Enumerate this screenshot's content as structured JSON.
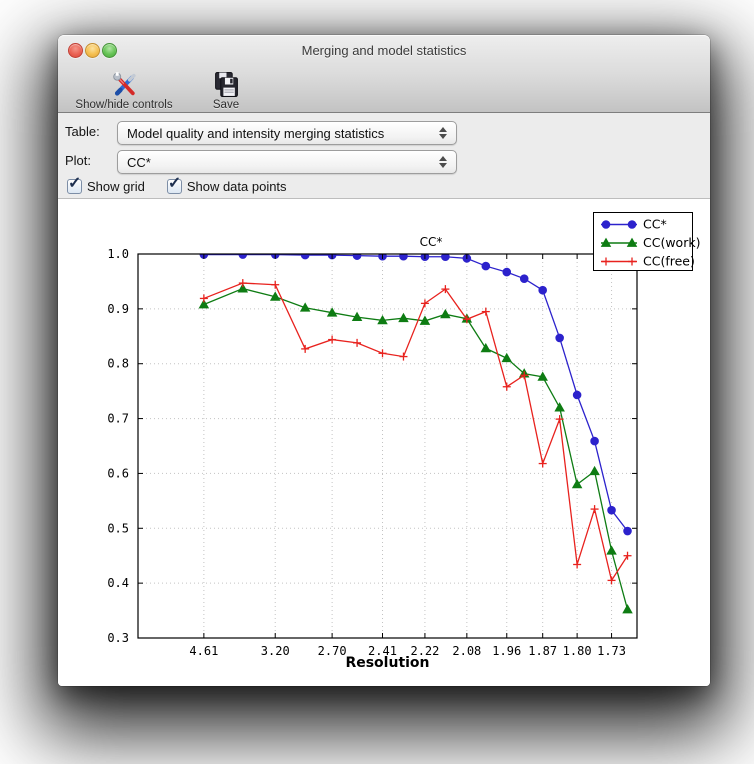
{
  "window": {
    "title": "Merging and model statistics"
  },
  "toolbar": {
    "buttons": [
      {
        "label": "Show/hide controls",
        "icon": "tools-icon"
      },
      {
        "label": "Save",
        "icon": "floppy-disk-icon"
      }
    ]
  },
  "controls": {
    "table_label": "Table:",
    "table_value": "Model quality and intensity merging statistics",
    "plot_label": "Plot:",
    "plot_value": "CC*",
    "checkboxes": [
      {
        "label": "Show grid",
        "checked": true
      },
      {
        "label": "Show data points",
        "checked": true
      }
    ]
  },
  "chart_data": {
    "type": "line",
    "title": "CC*",
    "xlabel": "Resolution",
    "ylabel": "",
    "ylim": [
      0.3,
      1.0
    ],
    "grid": true,
    "legend_position": "upper right",
    "yticks": [
      {
        "v": 1.0,
        "label": "1.0"
      },
      {
        "v": 0.9,
        "label": "0.9"
      },
      {
        "v": 0.8,
        "label": "0.8"
      },
      {
        "v": 0.7,
        "label": "0.7"
      },
      {
        "v": 0.6,
        "label": "0.6"
      },
      {
        "v": 0.5,
        "label": "0.5"
      },
      {
        "v": 0.4,
        "label": "0.4"
      },
      {
        "v": 0.3,
        "label": "0.3"
      }
    ],
    "xtick_labels": [
      "4.61",
      "3.20",
      "2.70",
      "2.41",
      "2.22",
      "2.08",
      "1.96",
      "1.87",
      "1.80",
      "1.73"
    ],
    "xtick_bins": [
      0,
      2,
      4,
      6,
      8,
      10,
      12,
      14,
      16,
      18
    ],
    "x_positions": [
      0.132,
      0.21,
      0.275,
      0.335,
      0.389,
      0.439,
      0.49,
      0.532,
      0.575,
      0.616,
      0.659,
      0.697,
      0.739,
      0.774,
      0.811,
      0.845,
      0.88,
      0.915,
      0.949,
      0.981
    ],
    "series": [
      {
        "name": "CC*",
        "color": "#2c22cc",
        "marker": "circle",
        "values": [
          0.999,
          0.999,
          0.999,
          0.998,
          0.998,
          0.997,
          0.996,
          0.996,
          0.995,
          0.995,
          0.992,
          0.978,
          0.967,
          0.955,
          0.934,
          0.847,
          0.743,
          0.659,
          0.533,
          0.495
        ]
      },
      {
        "name": "CC(work)",
        "color": "#0e7c13",
        "marker": "triangle",
        "values": [
          0.908,
          0.937,
          0.922,
          0.902,
          0.893,
          0.885,
          0.879,
          0.883,
          0.878,
          0.89,
          0.882,
          0.828,
          0.81,
          0.782,
          0.776,
          0.72,
          0.58,
          0.604,
          0.459,
          0.352
        ]
      },
      {
        "name": "CC(free)",
        "color": "#e8221e",
        "marker": "plus",
        "values": [
          0.919,
          0.947,
          0.944,
          0.827,
          0.844,
          0.838,
          0.819,
          0.813,
          0.91,
          0.936,
          0.881,
          0.895,
          0.758,
          0.779,
          0.618,
          0.699,
          0.434,
          0.535,
          0.405,
          0.45
        ]
      }
    ]
  }
}
